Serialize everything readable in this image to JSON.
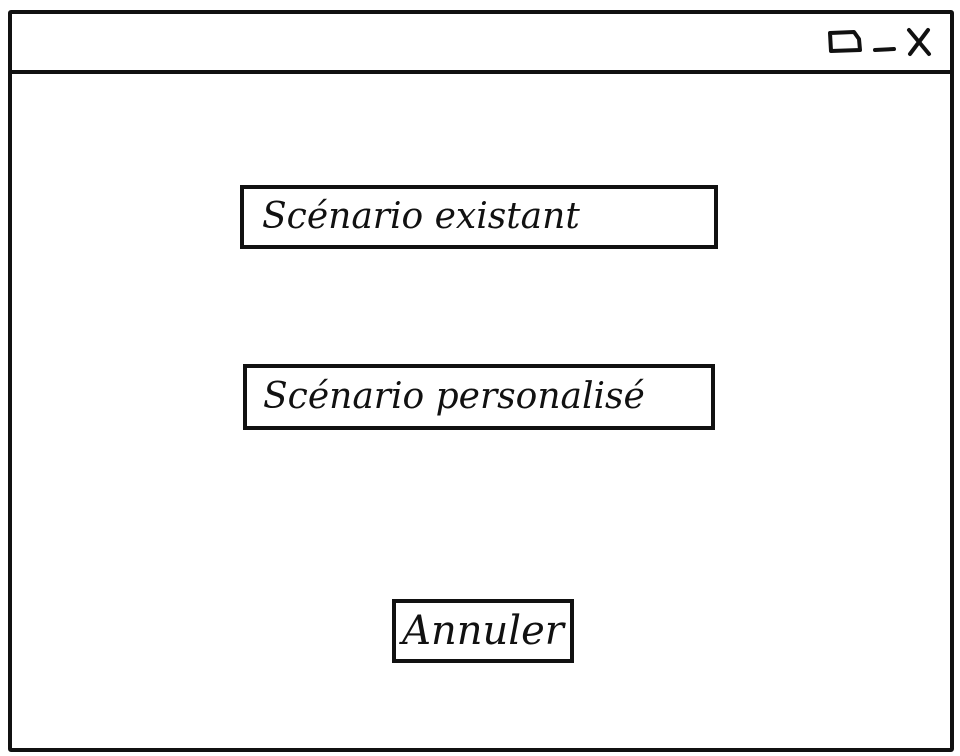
{
  "window": {
    "controls": [
      "window-restore-icon",
      "minimize-icon",
      "close-icon"
    ]
  },
  "actions": {
    "existing_scenario_label": "Scénario existant",
    "custom_scenario_label": "Scénario personalisé",
    "cancel_label": "Annuler"
  }
}
